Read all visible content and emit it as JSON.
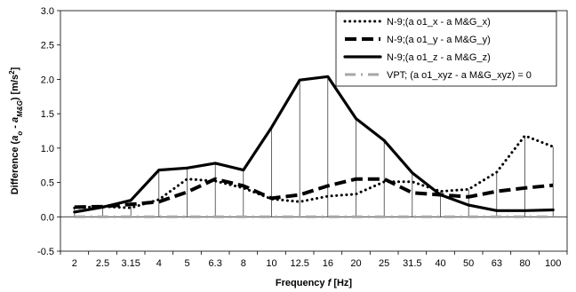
{
  "chart_data": {
    "type": "line",
    "categories": [
      "2",
      "2.5",
      "3.15",
      "4",
      "5",
      "6.3",
      "8",
      "10",
      "12.5",
      "16",
      "20",
      "25",
      "31.5",
      "40",
      "50",
      "63",
      "80",
      "100"
    ],
    "ylim": [
      -0.5,
      3.0
    ],
    "yticks": [
      "-0.5",
      "0.0",
      "0.5",
      "1.0",
      "1.5",
      "2.0",
      "2.5",
      "3.0"
    ],
    "yticks_values": [
      -0.5,
      0,
      0.5,
      1.0,
      1.5,
      2.0,
      2.5,
      3.0
    ],
    "xlabel_prefix": "Frequency ",
    "xlabel_italic": "f",
    "xlabel_suffix": " [Hz]",
    "ylabel": "Difference (a_o - a_M&G) [m/s²]",
    "ylabel_parts": {
      "p1": "Difference (",
      "a1": "a",
      "s1": "o",
      "p2": " - ",
      "a2": "a",
      "s2": "M&G",
      "p3": ") [m/s",
      "sup": "2",
      "p4": "]"
    },
    "grid": "vertical drop lines at each category",
    "legend_position": "top-right",
    "series": [
      {
        "name": "N-9;(a o1_x - a M&G_x)",
        "style": "dotted",
        "color": "#000000",
        "values": [
          0.13,
          0.15,
          0.13,
          0.25,
          0.55,
          0.52,
          0.42,
          0.26,
          0.22,
          0.3,
          0.33,
          0.51,
          0.51,
          0.37,
          0.4,
          0.65,
          1.18,
          1.02
        ]
      },
      {
        "name": "N-9;(a o1_y - a M&G_y)",
        "style": "dashed",
        "color": "#000000",
        "values": [
          0.14,
          0.15,
          0.18,
          0.22,
          0.36,
          0.55,
          0.45,
          0.27,
          0.32,
          0.45,
          0.55,
          0.55,
          0.35,
          0.32,
          0.29,
          0.37,
          0.42,
          0.46
        ]
      },
      {
        "name": "N-9;(a o1_z - a M&G_z)",
        "style": "solid",
        "color": "#000000",
        "values": [
          0.07,
          0.14,
          0.24,
          0.68,
          0.71,
          0.78,
          0.68,
          1.3,
          1.99,
          2.04,
          1.43,
          1.11,
          0.64,
          0.32,
          0.17,
          0.09,
          0.09,
          0.1
        ]
      },
      {
        "name": "VPT; (a o1_xyz - a M&G_xyz) = 0",
        "style": "dash-dot",
        "color": "#a6a6a6",
        "values": [
          0,
          0,
          0,
          0,
          0,
          0,
          0,
          0,
          0,
          0,
          0,
          0,
          0,
          0,
          0,
          0,
          0,
          0
        ]
      }
    ]
  }
}
